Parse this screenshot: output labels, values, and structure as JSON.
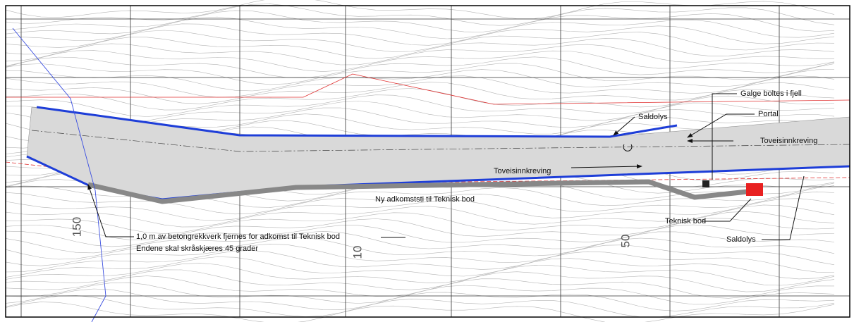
{
  "labels": {
    "galge": "Galge boltes i fjell",
    "portal": "Portal",
    "saldolys_top": "Saldolys",
    "toveis_right": "Toveisinnkreving",
    "toveis_left": "Toveisinnkreving",
    "adkomststi": "Ny adkomststi til Teknisk bod",
    "teknisk_bod": "Teknisk bod",
    "saldolys_bottom": "Saldolys",
    "note_line1": "1,0 m av betongrekkverk fjernes for adkomst til Teknisk bod",
    "note_line2": "Endene skal skråskjæres 45 grader",
    "station_150": "150",
    "station_10": "10",
    "station_50": "50"
  }
}
